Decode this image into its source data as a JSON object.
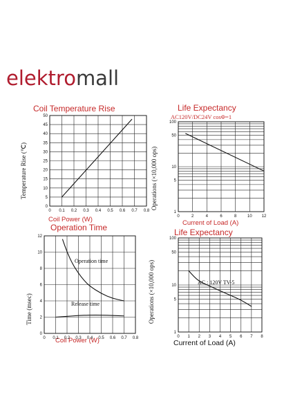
{
  "brand": {
    "part1": "elektro",
    "part2": "mall",
    "color_part1": "#b01c2e",
    "color_part2": "#3a3a3a"
  },
  "chart_data": [
    {
      "type": "line",
      "title": "Coil Temperature Rise",
      "xlabel": "Coil Power (W)",
      "ylabel": "Temperature Rise (℃)",
      "xlim": [
        0,
        0.8
      ],
      "ylim": [
        0,
        50
      ],
      "x_ticks": [
        "0",
        "0.1",
        "0.2",
        "0.3",
        "0.4",
        "0.5",
        "0.6",
        "0.7",
        "0.8"
      ],
      "y_ticks": [
        "0",
        "5",
        "10",
        "15",
        "20",
        "25",
        "30",
        "35",
        "40",
        "45",
        "50"
      ],
      "grid": true,
      "series": [
        {
          "x": [
            0.1,
            0.68
          ],
          "y": [
            5,
            48
          ]
        }
      ]
    },
    {
      "type": "line",
      "title": "Life Expectancy",
      "subtitle": "AC120V/DC24V cosΦ=1",
      "xlabel": "Current of Load (A)",
      "ylabel": "Operations (×10,000 ops)",
      "xlim": [
        0,
        12
      ],
      "ylim": [
        1,
        100
      ],
      "yscale": "log",
      "x_ticks": [
        "0",
        "2",
        "4",
        "6",
        "8",
        "10",
        "12"
      ],
      "y_ticks": [
        "1",
        "5",
        "10",
        "50",
        "100"
      ],
      "grid": true,
      "series": [
        {
          "x": [
            1,
            12
          ],
          "y": [
            55,
            8
          ]
        }
      ]
    },
    {
      "type": "line",
      "title": "Operation Time",
      "xlabel": "Coil Power (W)",
      "ylabel": "Time (msec)",
      "xlim": [
        0,
        0.8
      ],
      "ylim": [
        0,
        12
      ],
      "x_ticks": [
        "0",
        "0.1",
        "0.2",
        "0.3",
        "0.4",
        "0.5",
        "0.6",
        "0.7",
        "0.8"
      ],
      "y_ticks": [
        "0",
        "2",
        "4",
        "6",
        "8",
        "10",
        "12"
      ],
      "grid": true,
      "series": [
        {
          "name": "Operation time",
          "x": [
            0.16,
            0.2,
            0.25,
            0.3,
            0.35,
            0.4,
            0.5,
            0.6,
            0.7
          ],
          "y": [
            11.6,
            10,
            8.5,
            7.4,
            6.5,
            5.8,
            4.9,
            4.3,
            4.0
          ]
        },
        {
          "name": "Release time",
          "x": [
            0.1,
            0.2,
            0.3,
            0.4,
            0.5,
            0.6,
            0.7
          ],
          "y": [
            2.0,
            2.1,
            2.2,
            2.25,
            2.25,
            2.2,
            2.15
          ]
        }
      ]
    },
    {
      "type": "line",
      "title": "Life Expectancy",
      "xlabel": "Current of Load (A)",
      "ylabel": "Operations (×10,000 ops)",
      "xlim": [
        0,
        8
      ],
      "ylim": [
        1,
        100
      ],
      "yscale": "log",
      "x_ticks": [
        "0",
        "1",
        "2",
        "3",
        "4",
        "5",
        "6",
        "7",
        "8"
      ],
      "y_ticks": [
        "1",
        "5",
        "10",
        "50",
        "100"
      ],
      "grid": true,
      "annotation": "AC : 120V TV-5",
      "series": [
        {
          "x": [
            1,
            1.5,
            2,
            3,
            4,
            5,
            6,
            7
          ],
          "y": [
            20,
            15,
            12,
            9.5,
            7.5,
            6,
            4.8,
            3.5
          ]
        }
      ]
    }
  ]
}
